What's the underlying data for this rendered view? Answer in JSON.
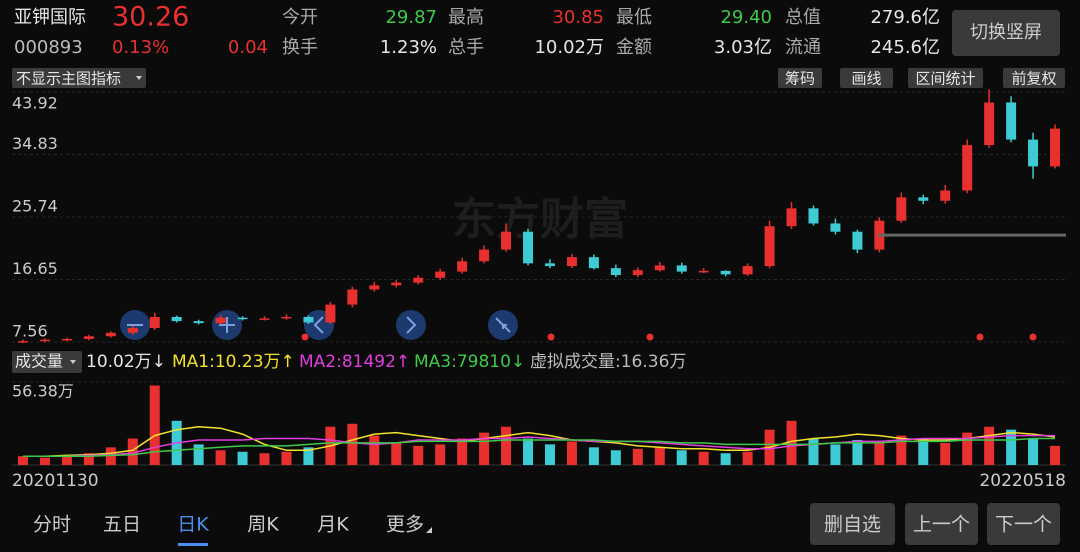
{
  "quote": {
    "name": "亚钾国际",
    "price": "30.26",
    "code": "000893",
    "change_pct": "0.13%",
    "change": "0.04",
    "switch_button": "切换竖屏",
    "fields": [
      {
        "label": "今开",
        "value": "29.87",
        "color": "#3fc94a"
      },
      {
        "label": "最高",
        "value": "30.85",
        "color": "#e8302f"
      },
      {
        "label": "最低",
        "value": "29.40",
        "color": "#3fc94a"
      },
      {
        "label": "总值",
        "value": "279.6亿",
        "color": "#e6e6e6"
      },
      {
        "label": "换手",
        "value": "1.23%",
        "color": "#e6e6e6"
      },
      {
        "label": "总手",
        "value": "10.02万",
        "color": "#e6e6e6"
      },
      {
        "label": "金额",
        "value": "3.03亿",
        "color": "#e6e6e6"
      },
      {
        "label": "流通",
        "value": "245.6亿",
        "color": "#e6e6e6"
      }
    ]
  },
  "toolbar": {
    "indicator": "不显示主图指标",
    "tools": [
      "筹码",
      "画线",
      "区间统计",
      "前复权"
    ]
  },
  "watermark": "东方财富",
  "chart_data": [
    {
      "type": "candlestick",
      "up_color": "#e8302f",
      "down_color": "#3ecbd4",
      "open": [
        7.6,
        7.7,
        7.9,
        8.0,
        8.4,
        8.9,
        9.6,
        11.2,
        10.6,
        10.3,
        11.1,
        10.9,
        11.0,
        11.2,
        10.4,
        13.0,
        15.2,
        15.8,
        16.2,
        16.9,
        17.8,
        19.3,
        21.0,
        23.6,
        19.0,
        18.6,
        19.9,
        18.3,
        17.3,
        18.0,
        18.7,
        17.8,
        17.9,
        17.4,
        18.6,
        24.4,
        27.0,
        24.8,
        23.6,
        21.0,
        25.2,
        28.6,
        28.1,
        29.6,
        36.2,
        42.4,
        37.0,
        33.1
      ],
      "high": [
        7.9,
        8.1,
        8.2,
        8.6,
        9.1,
        9.9,
        11.8,
        11.4,
        10.8,
        11.5,
        11.3,
        11.3,
        11.6,
        11.4,
        13.4,
        15.6,
        16.3,
        16.6,
        17.3,
        18.2,
        19.8,
        21.6,
        24.8,
        24.0,
        19.6,
        20.4,
        20.3,
        18.8,
        18.4,
        19.2,
        19.1,
        18.3,
        18.0,
        19.0,
        25.2,
        27.9,
        27.4,
        25.5,
        23.9,
        25.7,
        29.3,
        29.0,
        30.4,
        37.0,
        44.3,
        43.3,
        38.0,
        39.2
      ],
      "low": [
        7.4,
        7.5,
        7.7,
        7.8,
        8.2,
        8.6,
        9.3,
        10.4,
        10.1,
        10.1,
        10.7,
        10.7,
        10.8,
        10.2,
        10.2,
        12.6,
        14.9,
        15.5,
        15.9,
        16.6,
        17.5,
        19.0,
        20.7,
        18.7,
        18.3,
        18.3,
        18.1,
        17.0,
        17.0,
        17.8,
        17.5,
        17.6,
        17.1,
        17.2,
        18.3,
        24.0,
        24.5,
        23.2,
        20.5,
        20.6,
        24.9,
        27.6,
        27.7,
        29.2,
        35.8,
        36.6,
        31.3,
        32.8
      ],
      "close": [
        7.7,
        7.9,
        8.0,
        8.4,
        8.9,
        9.6,
        11.2,
        10.6,
        10.3,
        11.1,
        10.9,
        11.0,
        11.2,
        10.4,
        13.0,
        15.2,
        15.8,
        16.2,
        16.9,
        17.8,
        19.3,
        21.0,
        23.6,
        19.0,
        18.6,
        19.9,
        18.3,
        17.3,
        18.0,
        18.7,
        17.8,
        17.9,
        17.4,
        18.6,
        24.4,
        27.0,
        24.8,
        23.6,
        21.0,
        25.2,
        28.6,
        28.1,
        29.6,
        36.2,
        42.4,
        37.0,
        33.1,
        38.6
      ],
      "ylim": [
        7.56,
        43.92
      ],
      "yticks": [
        7.56,
        16.65,
        25.74,
        34.83,
        43.92
      ],
      "level_line": 23.1,
      "start_label": "20201130",
      "end_label": "20220518"
    },
    {
      "type": "bar",
      "legend_title": "成交量",
      "current": "10.02万↓",
      "virtual": "虚拟成交量:16.36万",
      "ylim": [
        0,
        56.38
      ],
      "yticks": [
        {
          "value": 56.38,
          "label": "56.38万"
        }
      ],
      "values": [
        6,
        5,
        7,
        8,
        12,
        18,
        54,
        30,
        14,
        10,
        9,
        8,
        9,
        12,
        26,
        28,
        20,
        15,
        13,
        14,
        18,
        22,
        26,
        18,
        14,
        16,
        12,
        10,
        11,
        12,
        10,
        9,
        8,
        9,
        24,
        30,
        18,
        14,
        17,
        16,
        20,
        18,
        15,
        22,
        26,
        24,
        18,
        13
      ],
      "series": [
        {
          "name": "MA1:10.23万↑",
          "color": "#f2e22c",
          "values": [
            6,
            6,
            6.5,
            7,
            8,
            10,
            20,
            24,
            26,
            25,
            21,
            14,
            10,
            10,
            13,
            17,
            21,
            22,
            20,
            18,
            16,
            18,
            20,
            22,
            20,
            17,
            16,
            15,
            13,
            12,
            11,
            11,
            10,
            10,
            12,
            16,
            18,
            19,
            21,
            20,
            18,
            17,
            17,
            18,
            20,
            22,
            21,
            19
          ]
        },
        {
          "name": "MA2:81492↑",
          "color": "#e23de0",
          "values": [
            6,
            6,
            6,
            6.5,
            7,
            8,
            12,
            15,
            17,
            17,
            17,
            18,
            18,
            18,
            17,
            15,
            14,
            15,
            17,
            17,
            17,
            18,
            18,
            19,
            18,
            17,
            16,
            16,
            16,
            15,
            14,
            13,
            12,
            11,
            11,
            13,
            14,
            15,
            16,
            16,
            17,
            18,
            18,
            18,
            19,
            20,
            20,
            20
          ]
        },
        {
          "name": "MA3:79810↓",
          "color": "#3fc94a",
          "values": [
            6,
            6,
            6,
            6,
            6.5,
            7,
            9,
            10,
            11,
            12,
            13,
            13,
            13,
            14,
            15,
            15,
            15,
            15,
            16,
            16,
            16,
            16,
            17,
            17,
            17,
            17,
            17,
            16,
            16,
            16,
            15,
            15,
            14,
            14,
            14,
            14,
            14,
            15,
            15,
            15,
            16,
            16,
            16,
            17,
            17,
            17,
            18,
            18
          ]
        }
      ]
    }
  ],
  "tabs": [
    "分时",
    "五日",
    "日K",
    "周K",
    "月K",
    "更多"
  ],
  "buttons": [
    "删自选",
    "上一个",
    "下一个"
  ]
}
